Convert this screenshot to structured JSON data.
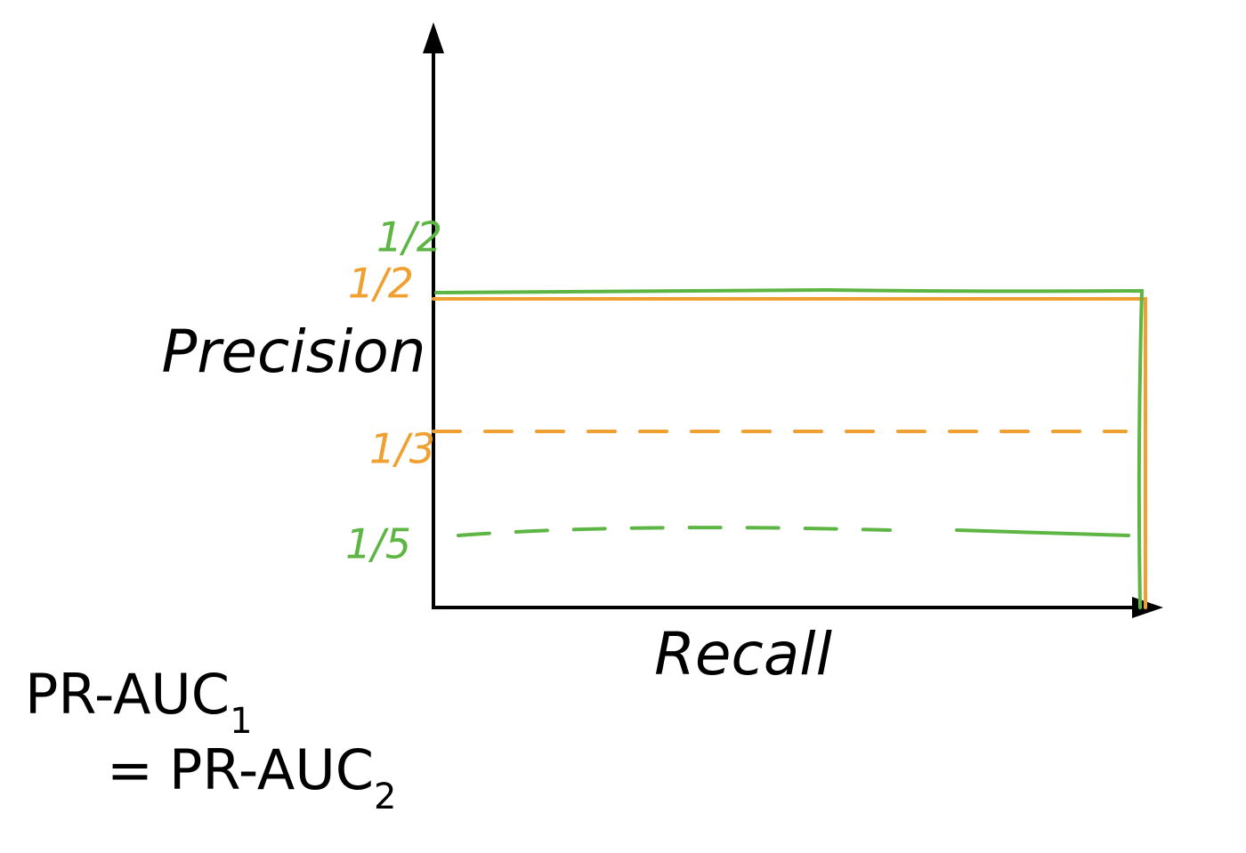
{
  "axes": {
    "y_label": "Precision",
    "x_label": "Recall"
  },
  "levels": [
    {
      "label": "1/2",
      "color": "green"
    },
    {
      "label": "1/2",
      "color": "orange"
    },
    {
      "label": "1/3",
      "color": "orange"
    },
    {
      "label": "1/5",
      "color": "green"
    }
  ],
  "equation": {
    "left": "PR-AUC",
    "left_sub": "1",
    "equals": "=",
    "right": "PR-AUC",
    "right_sub": "2"
  }
}
